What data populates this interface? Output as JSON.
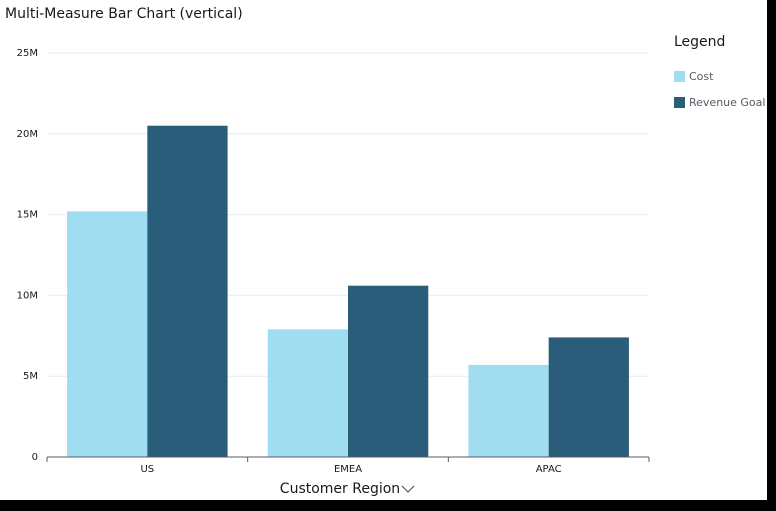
{
  "chart_data": {
    "type": "bar",
    "title": "Multi-Measure Bar Chart (vertical)",
    "x_label": "Customer Region",
    "legend_title": "Legend",
    "legend_position": "right",
    "categories": [
      "US",
      "EMEA",
      "APAC"
    ],
    "series": [
      {
        "name": "Cost",
        "color": "#a0ddf0",
        "values": [
          15200000,
          7900000,
          5700000
        ]
      },
      {
        "name": "Revenue Goal",
        "color": "#2a5d79",
        "values": [
          20500000,
          10600000,
          7400000
        ]
      }
    ],
    "ylim": [
      0,
      25000000
    ],
    "yticks": [
      0,
      {
        "value": 5000000,
        "label": "5M"
      },
      {
        "value": 10000000,
        "label": "10M"
      },
      {
        "value": 15000000,
        "label": "15M"
      },
      {
        "value": 20000000,
        "label": "20M"
      },
      {
        "value": 25000000,
        "label": "25M"
      }
    ],
    "grid": true
  }
}
